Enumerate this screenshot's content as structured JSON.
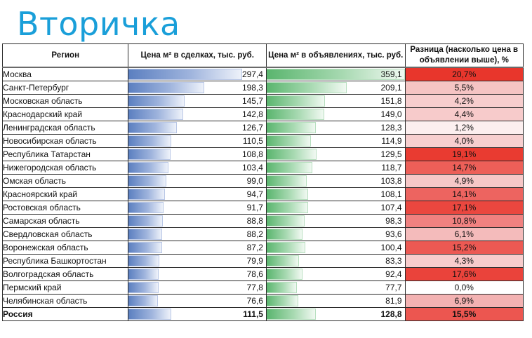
{
  "title": "Вторичка",
  "table": {
    "headers": [
      "Регион",
      "Цена м² в сделках, тыс. руб.",
      "Цена м² в объявлениях, тыс. руб.",
      "Разница (насколько цена в объявлении выше), %"
    ],
    "bar_max": 359.1,
    "rows": [
      {
        "region": "Москва",
        "deal": "297,4",
        "deal_num": 297.4,
        "ad": "359,1",
        "ad_num": 359.1,
        "diff": "20,7%",
        "diff_color": "#e8362c"
      },
      {
        "region": "Санкт-Петербург",
        "deal": "198,3",
        "deal_num": 198.3,
        "ad": "209,1",
        "ad_num": 209.1,
        "diff": "5,5%",
        "diff_color": "#f5c4c3"
      },
      {
        "region": "Московская область",
        "deal": "145,7",
        "deal_num": 145.7,
        "ad": "151,8",
        "ad_num": 151.8,
        "diff": "4,2%",
        "diff_color": "#f7cdcd"
      },
      {
        "region": "Краснодарский край",
        "deal": "142,8",
        "deal_num": 142.8,
        "ad": "149,0",
        "ad_num": 149.0,
        "diff": "4,4%",
        "diff_color": "#f7cbcb"
      },
      {
        "region": "Ленинградская область",
        "deal": "126,7",
        "deal_num": 126.7,
        "ad": "128,3",
        "ad_num": 128.3,
        "diff": "1,2%",
        "diff_color": "#fcefef"
      },
      {
        "region": "Новосибирская область",
        "deal": "110,5",
        "deal_num": 110.5,
        "ad": "114,9",
        "ad_num": 114.9,
        "diff": "4,0%",
        "diff_color": "#f7cfcf"
      },
      {
        "region": "Республика Татарстан",
        "deal": "108,8",
        "deal_num": 108.8,
        "ad": "129,5",
        "ad_num": 129.5,
        "diff": "19,1%",
        "diff_color": "#e93b31"
      },
      {
        "region": "Нижегородская область",
        "deal": "103,4",
        "deal_num": 103.4,
        "ad": "118,7",
        "ad_num": 118.7,
        "diff": "14,7%",
        "diff_color": "#ed5f58"
      },
      {
        "region": "Омская область",
        "deal": "99,0",
        "deal_num": 99.0,
        "ad": "103,8",
        "ad_num": 103.8,
        "diff": "4,9%",
        "diff_color": "#f6c7c7"
      },
      {
        "region": "Красноярский край",
        "deal": "94,7",
        "deal_num": 94.7,
        "ad": "108,1",
        "ad_num": 108.1,
        "diff": "14,1%",
        "diff_color": "#ed6460"
      },
      {
        "region": "Ростовская область",
        "deal": "91,7",
        "deal_num": 91.7,
        "ad": "107,4",
        "ad_num": 107.4,
        "diff": "17,1%",
        "diff_color": "#ea473f"
      },
      {
        "region": "Самарская область",
        "deal": "88,8",
        "deal_num": 88.8,
        "ad": "98,3",
        "ad_num": 98.3,
        "diff": "10,8%",
        "diff_color": "#f08180"
      },
      {
        "region": "Свердловская область",
        "deal": "88,2",
        "deal_num": 88.2,
        "ad": "93,6",
        "ad_num": 93.6,
        "diff": "6,1%",
        "diff_color": "#f4bbbb"
      },
      {
        "region": "Воронежская область",
        "deal": "87,2",
        "deal_num": 87.2,
        "ad": "100,4",
        "ad_num": 100.4,
        "diff": "15,2%",
        "diff_color": "#ec5953"
      },
      {
        "region": "Республика Башкортостан",
        "deal": "79,9",
        "deal_num": 79.9,
        "ad": "83,3",
        "ad_num": 83.3,
        "diff": "4,3%",
        "diff_color": "#f7cccc"
      },
      {
        "region": "Волгоградская область",
        "deal": "78,6",
        "deal_num": 78.6,
        "ad": "92,4",
        "ad_num": 92.4,
        "diff": "17,6%",
        "diff_color": "#ea433b"
      },
      {
        "region": "Пермский край",
        "deal": "77,8",
        "deal_num": 77.8,
        "ad": "77,7",
        "ad_num": 77.7,
        "diff": "0,0%",
        "diff_color": "#ffffff"
      },
      {
        "region": "Челябинская область",
        "deal": "76,6",
        "deal_num": 76.6,
        "ad": "81,9",
        "ad_num": 81.9,
        "diff": "6,9%",
        "diff_color": "#f3b2b2"
      },
      {
        "region": "Россия",
        "deal": "111,5",
        "deal_num": 111.5,
        "ad": "128,8",
        "ad_num": 128.8,
        "diff": "15,5%",
        "diff_color": "#ec5650",
        "total": true
      }
    ]
  }
}
